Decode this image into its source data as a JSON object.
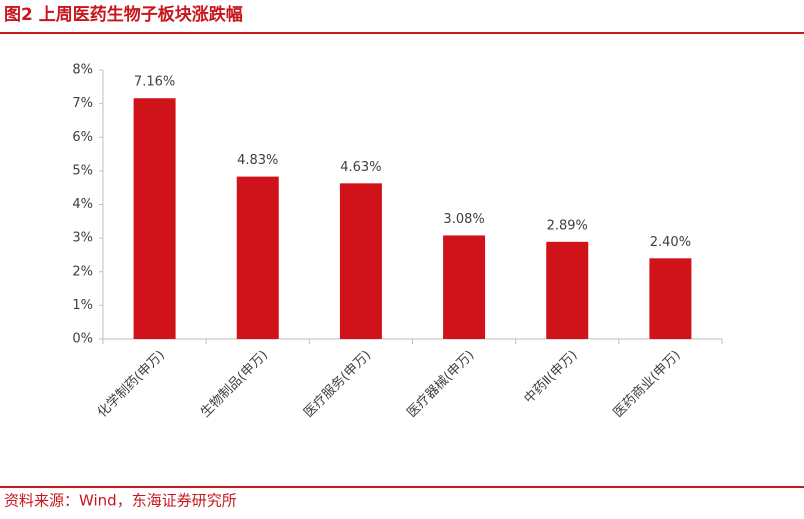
{
  "chart_data": {
    "type": "bar",
    "title": "图2  上周医药生物子板块涨跌幅",
    "categories": [
      "化学制药(申万)",
      "生物制品(申万)",
      "医疗服务(申万)",
      "医疗器械(申万)",
      "中药Ⅱ(申万)",
      "医药商业(申万)"
    ],
    "values": [
      7.16,
      4.83,
      4.63,
      3.08,
      2.89,
      2.4
    ],
    "value_labels": [
      "7.16%",
      "4.83%",
      "4.63%",
      "3.08%",
      "2.89%",
      "2.40%"
    ],
    "color": "#d0121b",
    "ylim": [
      0,
      8
    ],
    "yticks": [
      {
        "value": 0,
        "label": "0%"
      },
      {
        "value": 1,
        "label": "1%"
      },
      {
        "value": 2,
        "label": "2%"
      },
      {
        "value": 3,
        "label": "3%"
      },
      {
        "value": 4,
        "label": "4%"
      },
      {
        "value": 5,
        "label": "5%"
      },
      {
        "value": 6,
        "label": "6%"
      },
      {
        "value": 7,
        "label": "7%"
      },
      {
        "value": 8,
        "label": "8%"
      }
    ],
    "grid": false,
    "source": "资料来源：Wind，东海证券研究所"
  }
}
